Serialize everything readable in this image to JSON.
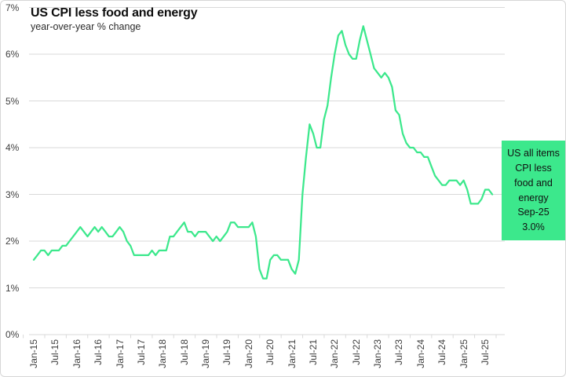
{
  "header": {
    "title": "US CPI less food and energy",
    "subtitle": "year-over-year % change"
  },
  "colors": {
    "accent_green": "#3ce88c",
    "gridline": "#d9d9d9",
    "axis_text": "#3f3f3f",
    "title_text": "#0d0d0d",
    "callout_text": "#111111",
    "background": "#ffffff"
  },
  "annotation": {
    "label": "US all items\nCPI less\nfood and\nenergy\nSep-25\n3.0%"
  },
  "y_axis": {
    "ticks": [
      "0%",
      "1%",
      "2%",
      "3%",
      "4%",
      "5%",
      "6%",
      "7%"
    ]
  },
  "x_axis": {
    "ticks": [
      "Jan-15",
      "Jul-15",
      "Jan-16",
      "Jul-16",
      "Jan-17",
      "Jul-17",
      "Jan-18",
      "Jul-18",
      "Jan-19",
      "Jul-19",
      "Jan-20",
      "Jul-20",
      "Jan-21",
      "Jul-21",
      "Jan-22",
      "Jul-22",
      "Jan-23",
      "Jul-23",
      "Jan-24",
      "Jul-24",
      "Jan-25",
      "Jul-25"
    ]
  },
  "chart_data": {
    "type": "line",
    "title": "US CPI less food and energy",
    "subtitle": "year-over-year % change",
    "xlabel": "",
    "ylabel": "year-over-year % change",
    "ylim": [
      0,
      7
    ],
    "grid": "horizontal",
    "legend_position": "right-callout",
    "frequency": "monthly",
    "first_month": "Jan-15",
    "last_month": "Sep-25",
    "last_point": {
      "month": "Sep-25",
      "value": 3.0
    },
    "x_tick_labels": [
      "Jan-15",
      "Jul-15",
      "Jan-16",
      "Jul-16",
      "Jan-17",
      "Jul-17",
      "Jan-18",
      "Jul-18",
      "Jan-19",
      "Jul-19",
      "Jan-20",
      "Jul-20",
      "Jan-21",
      "Jul-21",
      "Jan-22",
      "Jul-22",
      "Jan-23",
      "Jul-23",
      "Jan-24",
      "Jul-24",
      "Jan-25",
      "Jul-25"
    ],
    "series": [
      {
        "name": "US all items CPI less food and energy",
        "values": [
          1.6,
          1.7,
          1.8,
          1.8,
          1.7,
          1.8,
          1.8,
          1.8,
          1.9,
          1.9,
          2.0,
          2.1,
          2.2,
          2.3,
          2.2,
          2.1,
          2.2,
          2.3,
          2.2,
          2.3,
          2.2,
          2.1,
          2.1,
          2.2,
          2.3,
          2.2,
          2.0,
          1.9,
          1.7,
          1.7,
          1.7,
          1.7,
          1.7,
          1.8,
          1.7,
          1.8,
          1.8,
          1.8,
          2.1,
          2.1,
          2.2,
          2.3,
          2.4,
          2.2,
          2.2,
          2.1,
          2.2,
          2.2,
          2.2,
          2.1,
          2.0,
          2.1,
          2.0,
          2.1,
          2.2,
          2.4,
          2.4,
          2.3,
          2.3,
          2.3,
          2.3,
          2.4,
          2.1,
          1.4,
          1.2,
          1.2,
          1.6,
          1.7,
          1.7,
          1.6,
          1.6,
          1.6,
          1.4,
          1.3,
          1.6,
          3.0,
          3.8,
          4.5,
          4.3,
          4.0,
          4.0,
          4.6,
          4.9,
          5.5,
          6.0,
          6.4,
          6.5,
          6.2,
          6.0,
          5.9,
          5.9,
          6.3,
          6.6,
          6.3,
          6.0,
          5.7,
          5.6,
          5.5,
          5.6,
          5.5,
          5.3,
          4.8,
          4.7,
          4.3,
          4.1,
          4.0,
          4.0,
          3.9,
          3.9,
          3.8,
          3.8,
          3.6,
          3.4,
          3.3,
          3.2,
          3.2,
          3.3,
          3.3,
          3.3,
          3.2,
          3.3,
          3.1,
          2.8,
          2.8,
          2.8,
          2.9,
          3.1,
          3.1,
          3.0
        ]
      }
    ]
  }
}
